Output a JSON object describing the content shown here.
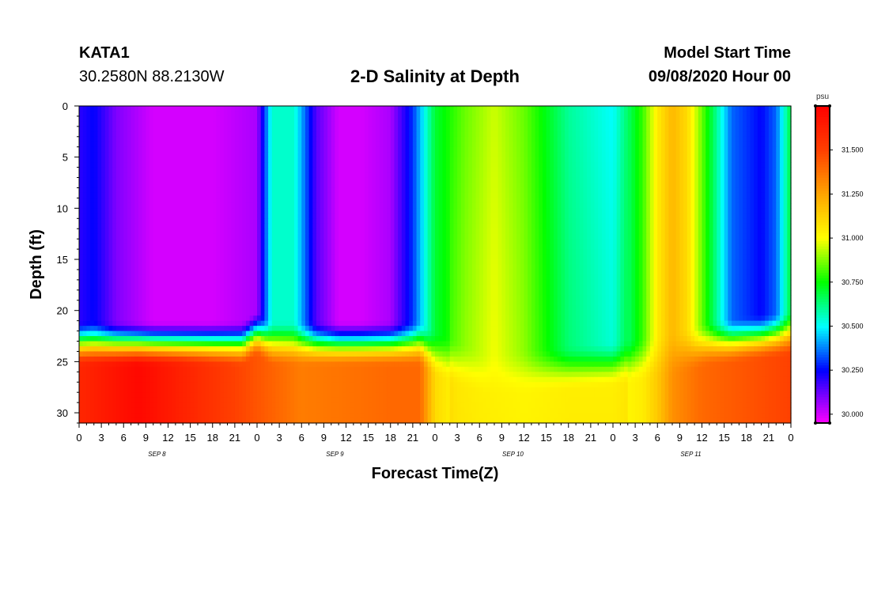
{
  "header": {
    "station": "KATA1",
    "coords": "30.2580N 88.2130W",
    "title": "2-D Salinity at Depth",
    "start_label": "Model Start Time",
    "start_value": "09/08/2020 Hour 00"
  },
  "chart_data": {
    "type": "heatmap",
    "title": "2-D Salinity at Depth",
    "xlabel": "Forecast Time(Z)",
    "ylabel": "Depth (ft)",
    "x_range_hours": [
      0,
      96
    ],
    "x_tick_step_hours": 3,
    "x_tick_labels": [
      "0",
      "3",
      "6",
      "9",
      "12",
      "15",
      "18",
      "21",
      "0",
      "3",
      "6",
      "9",
      "12",
      "15",
      "18",
      "21",
      "0",
      "3",
      "6",
      "9",
      "12",
      "15",
      "18",
      "21",
      "0",
      "3",
      "6",
      "9",
      "12",
      "15",
      "18",
      "21",
      "0"
    ],
    "day_labels": [
      "SEP 8",
      "SEP 9",
      "SEP 10",
      "SEP 11"
    ],
    "y_range_ft": [
      0,
      31
    ],
    "y_ticks": [
      0,
      5,
      10,
      15,
      20,
      25,
      30
    ],
    "y_inverted": true,
    "colorbar": {
      "unit": "psu",
      "range": [
        29.95,
        31.75
      ],
      "tick_values": [
        30.0,
        30.25,
        30.5,
        30.75,
        31.0,
        31.25,
        31.5
      ],
      "tick_labels": [
        "30.000",
        "30.250",
        "30.500",
        "30.750",
        "31.000",
        "31.250",
        "31.500"
      ],
      "stops": [
        {
          "v": 29.95,
          "color": "#ff00ff"
        },
        {
          "v": 30.25,
          "color": "#0000ff"
        },
        {
          "v": 30.5,
          "color": "#00ffff"
        },
        {
          "v": 30.75,
          "color": "#00ff00"
        },
        {
          "v": 31.0,
          "color": "#ffff00"
        },
        {
          "v": 31.25,
          "color": "#ffa500"
        },
        {
          "v": 31.5,
          "color": "#ff4000"
        },
        {
          "v": 31.75,
          "color": "#ff0000"
        }
      ]
    },
    "surface_series_psu": {
      "hours": [
        0,
        2,
        5,
        10,
        18,
        24,
        26,
        29,
        32,
        35,
        38,
        42,
        45,
        48,
        52,
        56,
        60,
        66,
        72,
        76,
        78,
        80,
        82,
        84,
        86,
        88,
        90,
        92,
        94,
        96
      ],
      "values": [
        30.2,
        30.25,
        30.1,
        30.0,
        30.0,
        30.05,
        30.55,
        30.55,
        30.15,
        30.0,
        30.0,
        30.05,
        30.3,
        30.7,
        30.85,
        30.95,
        30.85,
        30.6,
        30.5,
        30.8,
        31.05,
        31.2,
        31.1,
        30.85,
        30.6,
        30.35,
        30.3,
        30.25,
        30.35,
        30.7
      ]
    },
    "bottom_series_psu": {
      "hours": [
        0,
        8,
        18,
        30,
        42,
        46,
        48,
        51,
        54,
        60,
        66,
        72,
        76,
        78,
        80,
        82,
        84,
        96
      ],
      "values": [
        31.6,
        31.72,
        31.55,
        31.35,
        31.4,
        31.4,
        31.1,
        31.02,
        31.0,
        30.98,
        31.0,
        31.0,
        31.05,
        31.15,
        31.3,
        31.35,
        31.4,
        31.5
      ]
    },
    "halocline_depth_ft": 21,
    "halocline_top_hours": [
      0,
      22,
      24,
      26,
      46,
      48,
      55,
      72,
      80,
      85,
      96
    ],
    "halocline_top_depth_ft": [
      21,
      21,
      20,
      21,
      21,
      22,
      24,
      23,
      22,
      21,
      20
    ]
  }
}
